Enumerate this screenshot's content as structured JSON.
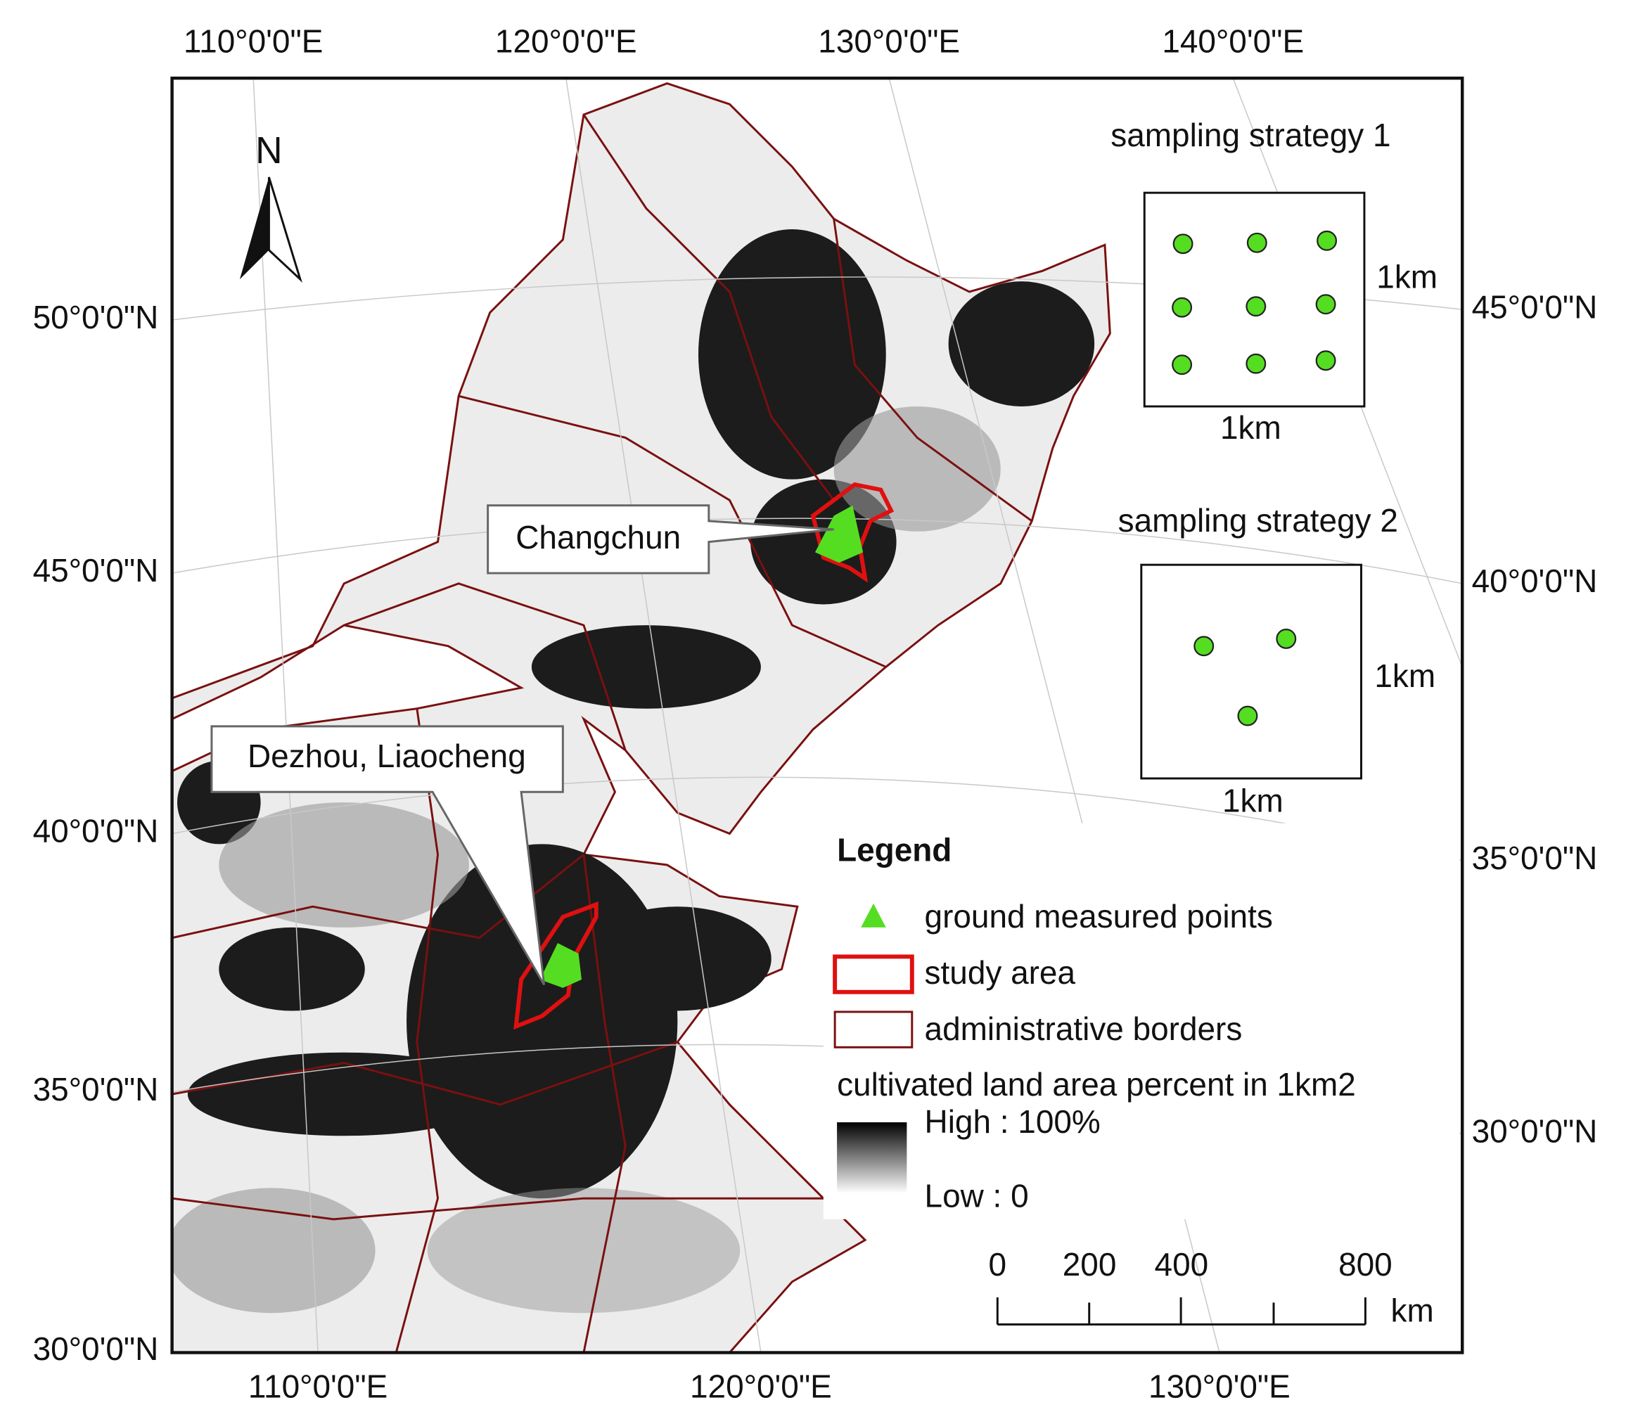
{
  "map": {
    "top_labels": [
      "110°0'0\"E",
      "120°0'0\"E",
      "130°0'0\"E",
      "140°0'0\"E"
    ],
    "bottom_labels": [
      "110°0'0\"E",
      "120°0'0\"E",
      "130°0'0\"E"
    ],
    "left_labels": [
      "50°0'0\"N",
      "45°0'0\"N",
      "40°0'0\"N",
      "35°0'0\"N",
      "30°0'0\"N"
    ],
    "right_labels": [
      "45°0'0\"N",
      "40°0'0\"N",
      "35°0'0\"N",
      "30°0'0\"N"
    ],
    "north_arrow": "N",
    "callouts": [
      "Changchun",
      "Dezhou, Liaocheng"
    ]
  },
  "sampling": [
    {
      "title": "sampling strategy 1",
      "side_label": "1km",
      "bottom_label": "1km"
    },
    {
      "title": "sampling strategy 2",
      "side_label": "1km",
      "bottom_label": "1km"
    }
  ],
  "legend": {
    "title": "Legend",
    "items": [
      "ground measured points",
      "study area",
      "administrative borders"
    ],
    "ramp_title": "cultivated land area percent in 1km2",
    "ramp_high": "High : 100%",
    "ramp_low": "Low : 0"
  },
  "scale_bar": {
    "ticks": [
      0,
      200,
      400,
      800
    ],
    "unit": "km"
  }
}
